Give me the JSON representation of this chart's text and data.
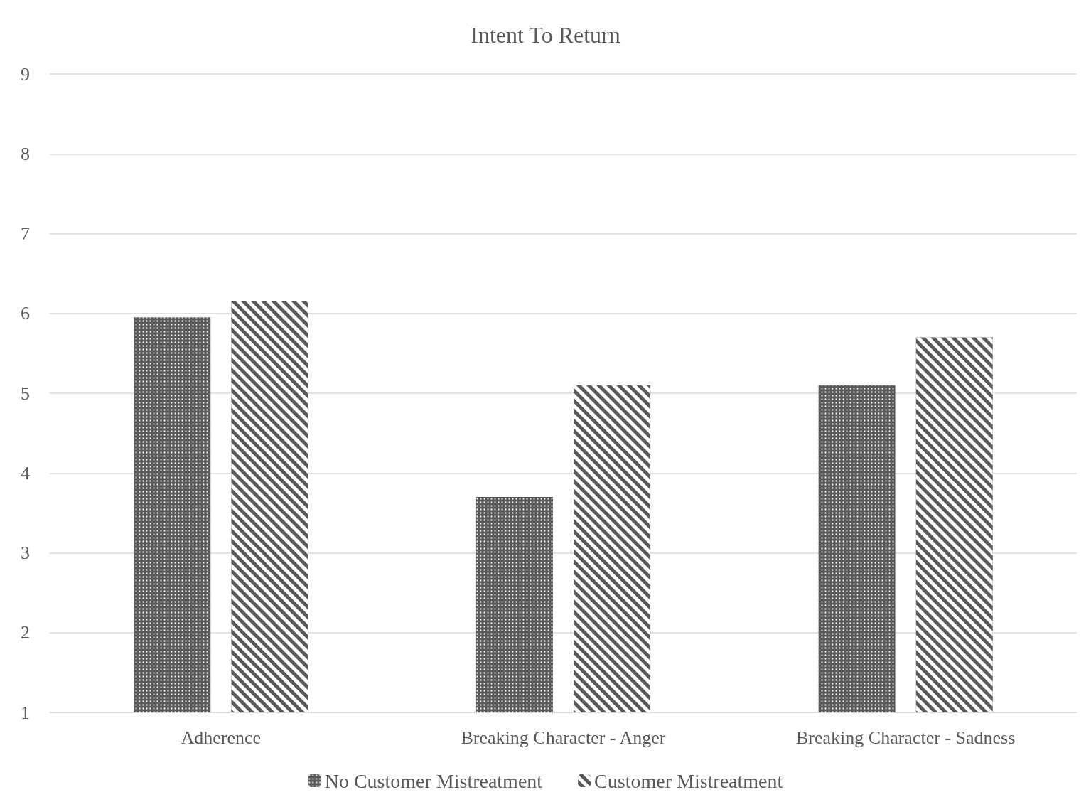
{
  "chart_data": {
    "type": "bar",
    "title": "Intent To Return",
    "categories": [
      "Adherence",
      "Breaking Character - Anger",
      "Breaking Character - Sadness"
    ],
    "series": [
      {
        "name": "No Customer Mistreatment",
        "color": "#595959",
        "values": [
          5.95,
          3.7,
          5.1
        ]
      },
      {
        "name": "Customer Mistreatment",
        "color": "#595959",
        "values": [
          6.15,
          5.1,
          5.7
        ]
      }
    ],
    "ylim": [
      1,
      9
    ],
    "yticks": [
      1,
      2,
      3,
      4,
      5,
      6,
      7,
      8,
      9
    ],
    "grid": "y",
    "legend": "bottom"
  }
}
